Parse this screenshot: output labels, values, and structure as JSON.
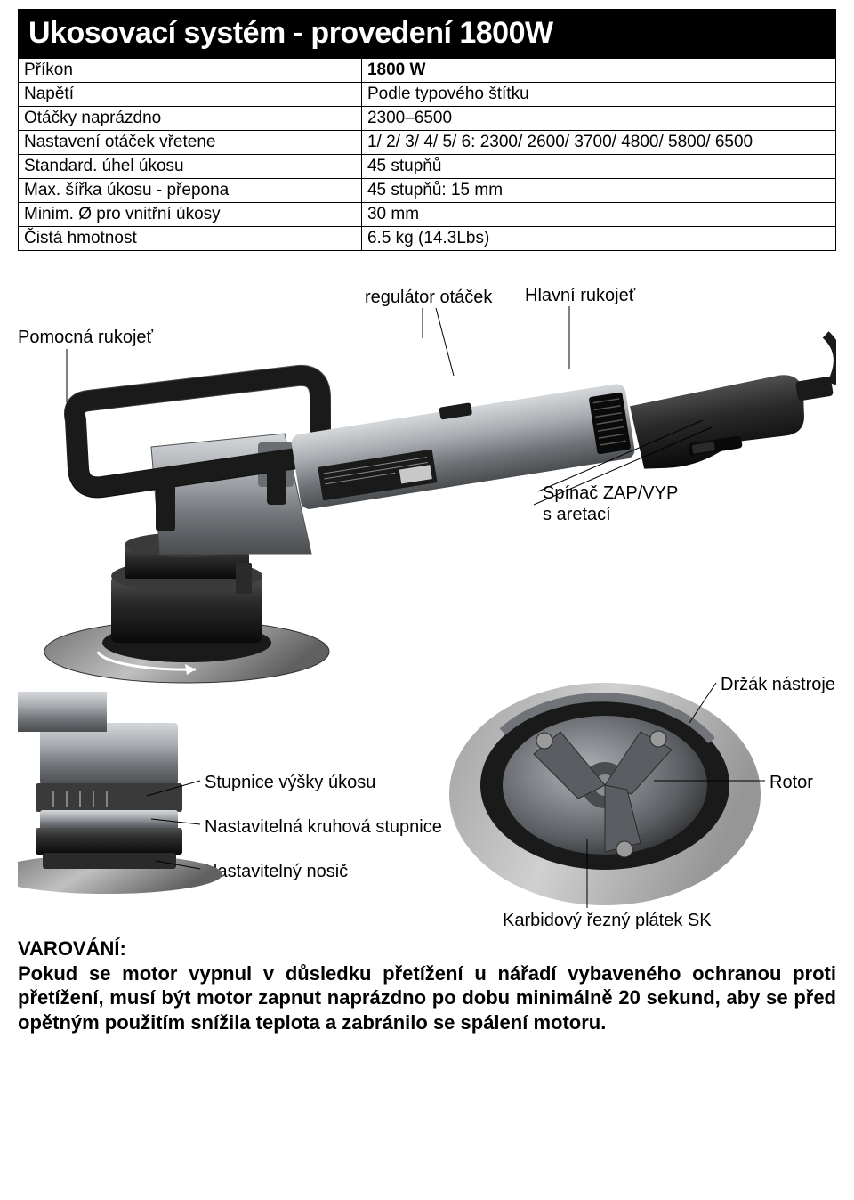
{
  "title": "Ukosovací systém - provedení 1800W",
  "table": {
    "rows": [
      {
        "label": "Příkon",
        "value": "1800 W",
        "bold": true
      },
      {
        "label": "Napětí",
        "value": "Podle typového štítku",
        "bold": false
      },
      {
        "label": "Otáčky naprázdno",
        "value": "2300–6500",
        "bold": false
      },
      {
        "label": "Nastavení otáček vřetene",
        "value": "1/ 2/ 3/ 4/ 5/ 6: 2300/ 2600/ 3700/ 4800/ 5800/ 6500",
        "bold": false
      },
      {
        "label": "Standard. úhel úkosu",
        "value": "45 stupňů",
        "bold": false
      },
      {
        "label": "Max. šířka úkosu - přepona",
        "value": "45 stupňů: 15 mm",
        "bold": false
      },
      {
        "label": "Minim. Ø pro vnitřní úkosy",
        "value": "30 mm",
        "bold": false
      },
      {
        "label": "Čistá hmotnost",
        "value": "6.5 kg (14.3Lbs)",
        "bold": false
      }
    ]
  },
  "diagram": {
    "labels": {
      "speed_regulator": "regulátor otáček",
      "main_handle": "Hlavní rukojeť",
      "aux_handle": "Pomocná rukojeť",
      "switch": "Spínač ZAP/VYP\ns aretací",
      "tool_holder": "Držák nástroje",
      "scale": "Stupnice výšky úkosu",
      "ring_scale": "Nastavitelná kruhová stupnice",
      "carrier": "Nastavitelný nosič",
      "rotor": "Rotor",
      "carbide": "Karbidový řezný plátek SK"
    },
    "colors": {
      "tool_body_light": "#b8bcc0",
      "tool_body_mid": "#8a8e92",
      "tool_body_dark": "#4a4d50",
      "tool_black": "#1a1a1a",
      "disc_gray": "#9a9a9a",
      "rotor_steel": "#7a7e82",
      "line": "#000000"
    }
  },
  "warning": {
    "title": "VAROVÁNÍ:",
    "body": "Pokud se motor vypnul v důsledku přetížení u nářadí vybaveného ochranou proti přetížení, musí být motor zapnut naprázdno po dobu minimálně 20 sekund, aby se před opětným použitím snížila teplota a zabránilo se spálení motoru."
  }
}
